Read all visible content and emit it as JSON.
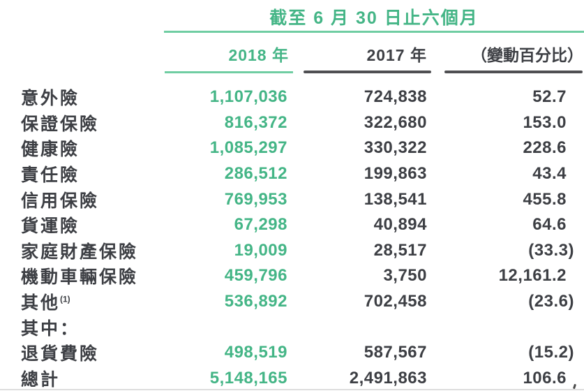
{
  "title": "截至 6 月 30 日止六個月",
  "columns": {
    "col_2018": "2018 年",
    "col_2017": "2017 年",
    "col_change": "（變動百分比）"
  },
  "colors": {
    "green": "#44b586",
    "green_rule": "#6fcda2",
    "dark": "#3d3f44",
    "dark_rule": "#4f4f52"
  },
  "rows": [
    {
      "label": "意外險",
      "v2018": "1,107,036",
      "v2017": "724,838",
      "change": "52.7"
    },
    {
      "label": "保證保險",
      "v2018": "816,372",
      "v2017": "322,680",
      "change": "153.0"
    },
    {
      "label": "健康險",
      "v2018": "1,085,297",
      "v2017": "330,322",
      "change": "228.6"
    },
    {
      "label": "責任險",
      "v2018": "286,512",
      "v2017": "199,863",
      "change": "43.4"
    },
    {
      "label": "信用保險",
      "v2018": "769,953",
      "v2017": "138,541",
      "change": "455.8"
    },
    {
      "label": "貨運險",
      "v2018": "67,298",
      "v2017": "40,894",
      "change": "64.6"
    },
    {
      "label": "家庭財產保險",
      "v2018": "19,009",
      "v2017": "28,517",
      "change": "(33.3)"
    },
    {
      "label": "機動車輛保險",
      "v2018": "459,796",
      "v2017": "3,750",
      "change": "12,161.2"
    },
    {
      "label": "其他",
      "label_sup": "(1)",
      "v2018": "536,892",
      "v2017": "702,458",
      "change": "(23.6)"
    },
    {
      "label": "其中：",
      "v2018": "",
      "v2017": "",
      "change": ""
    },
    {
      "label": "退貨費險",
      "v2018": "498,519",
      "v2017": "587,567",
      "change": "(15.2)"
    },
    {
      "label": "總計",
      "v2018": "5,148,165",
      "v2017": "2,491,863",
      "change": "106.6"
    }
  ]
}
